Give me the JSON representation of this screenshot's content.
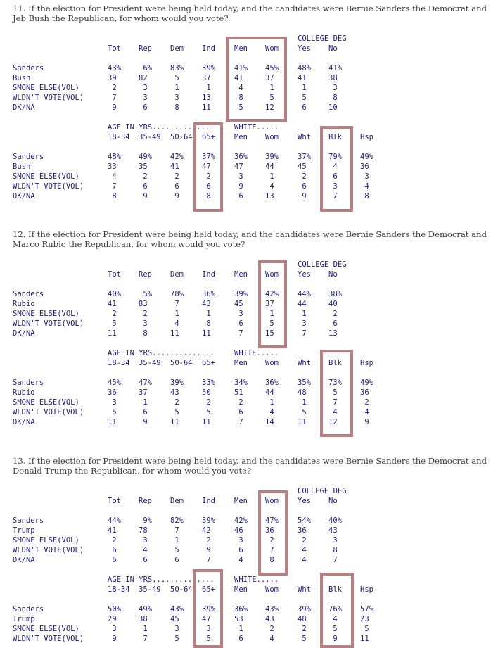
{
  "questions": [
    {
      "text": "11. If the election for President were being held today, and the candidates were Bernie Sanders the Democrat and Jeb Bush the Republican, for whom would you vote?",
      "group_header_1": "COLLEGE DEG",
      "columns_1": [
        "Tot",
        "Rep",
        "Dem",
        "Ind",
        "Men",
        "Wom",
        "Yes",
        "No"
      ],
      "rows_1": [
        {
          "label": "Sanders",
          "values": [
            "43%",
            "6%",
            "83%",
            "39%",
            "41%",
            "45%",
            "48%",
            "41%"
          ]
        },
        {
          "label": "Bush",
          "values": [
            "39",
            "82",
            "5",
            "37",
            "41",
            "37",
            "41",
            "38"
          ]
        },
        {
          "label": "SMONE ELSE(VOL)",
          "values": [
            "2",
            "3",
            "1",
            "1",
            "4",
            "1",
            "1",
            "3"
          ]
        },
        {
          "label": "WLDN'T VOTE(VOL)",
          "values": [
            "7",
            "3",
            "3",
            "13",
            "8",
            "5",
            "5",
            "8"
          ]
        },
        {
          "label": "DK/NA",
          "values": [
            "9",
            "6",
            "8",
            "11",
            "5",
            "12",
            "6",
            "10"
          ]
        }
      ],
      "group_header_age": "AGE IN YRS..............",
      "group_header_white": "WHITE.....",
      "columns_2": [
        "18-34",
        "35-49",
        "50-64",
        "65+",
        "Men",
        "Wom",
        "Wht",
        "Blk",
        "Hsp"
      ],
      "rows_2": [
        {
          "label": "Sanders",
          "values": [
            "48%",
            "49%",
            "42%",
            "37%",
            "36%",
            "39%",
            "37%",
            "79%",
            "49%"
          ]
        },
        {
          "label": "Bush",
          "values": [
            "33",
            "35",
            "41",
            "47",
            "47",
            "44",
            "45",
            "4",
            "36"
          ]
        },
        {
          "label": "SMONE ELSE(VOL)",
          "values": [
            "4",
            "2",
            "2",
            "2",
            "3",
            "1",
            "2",
            "6",
            "3"
          ]
        },
        {
          "label": "WLDN'T VOTE(VOL)",
          "values": [
            "7",
            "6",
            "6",
            "6",
            "9",
            "4",
            "6",
            "3",
            "4"
          ]
        },
        {
          "label": "DK/NA",
          "values": [
            "8",
            "9",
            "9",
            "8",
            "6",
            "13",
            "9",
            "7",
            "8"
          ]
        }
      ]
    },
    {
      "text": "12. If the election for President were being held today, and the candidates were Bernie Sanders the Democrat and Marco Rubio the Republican, for whom would you vote?",
      "group_header_1": "COLLEGE DEG",
      "columns_1": [
        "Tot",
        "Rep",
        "Dem",
        "Ind",
        "Men",
        "Wom",
        "Yes",
        "No"
      ],
      "rows_1": [
        {
          "label": "Sanders",
          "values": [
            "40%",
            "5%",
            "78%",
            "36%",
            "39%",
            "42%",
            "44%",
            "38%"
          ]
        },
        {
          "label": "Rubio",
          "values": [
            "41",
            "83",
            "7",
            "43",
            "45",
            "37",
            "44",
            "40"
          ]
        },
        {
          "label": "SMONE ELSE(VOL)",
          "values": [
            "2",
            "2",
            "1",
            "1",
            "3",
            "1",
            "1",
            "2"
          ]
        },
        {
          "label": "WLDN'T VOTE(VOL)",
          "values": [
            "5",
            "3",
            "4",
            "8",
            "6",
            "5",
            "3",
            "6"
          ]
        },
        {
          "label": "DK/NA",
          "values": [
            "11",
            "8",
            "11",
            "11",
            "7",
            "15",
            "7",
            "13"
          ]
        }
      ],
      "group_header_age": "AGE IN YRS..............",
      "group_header_white": "WHITE.....",
      "columns_2": [
        "18-34",
        "35-49",
        "50-64",
        "65+",
        "Men",
        "Wom",
        "Wht",
        "Blk",
        "Hsp"
      ],
      "rows_2": [
        {
          "label": "Sanders",
          "values": [
            "45%",
            "47%",
            "39%",
            "33%",
            "34%",
            "36%",
            "35%",
            "73%",
            "49%"
          ]
        },
        {
          "label": "Rubio",
          "values": [
            "36",
            "37",
            "43",
            "50",
            "51",
            "44",
            "48",
            "5",
            "36"
          ]
        },
        {
          "label": "SMONE ELSE(VOL)",
          "values": [
            "3",
            "1",
            "2",
            "2",
            "2",
            "1",
            "1",
            "7",
            "2"
          ]
        },
        {
          "label": "WLDN'T VOTE(VOL)",
          "values": [
            "5",
            "6",
            "5",
            "5",
            "6",
            "4",
            "5",
            "4",
            "4"
          ]
        },
        {
          "label": "DK/NA",
          "values": [
            "11",
            "9",
            "11",
            "11",
            "7",
            "14",
            "11",
            "12",
            "9"
          ]
        }
      ]
    },
    {
      "text": "13. If the election for President were being held today, and the candidates were Bernie Sanders the Democrat and Donald Trump the Republican, for whom would you vote?",
      "group_header_1": "COLLEGE DEG",
      "columns_1": [
        "Tot",
        "Rep",
        "Dem",
        "Ind",
        "Men",
        "Wom",
        "Yes",
        "No"
      ],
      "rows_1": [
        {
          "label": "Sanders",
          "values": [
            "44%",
            "9%",
            "82%",
            "39%",
            "42%",
            "47%",
            "54%",
            "40%"
          ]
        },
        {
          "label": "Trump",
          "values": [
            "41",
            "78",
            "7",
            "42",
            "46",
            "36",
            "36",
            "43"
          ]
        },
        {
          "label": "SMONE ELSE(VOL)",
          "values": [
            "2",
            "3",
            "1",
            "2",
            "3",
            "2",
            "2",
            "3"
          ]
        },
        {
          "label": "WLDN'T VOTE(VOL)",
          "values": [
            "6",
            "4",
            "5",
            "9",
            "6",
            "7",
            "4",
            "8"
          ]
        },
        {
          "label": "DK/NA",
          "values": [
            "6",
            "6",
            "6",
            "7",
            "4",
            "8",
            "4",
            "7"
          ]
        }
      ],
      "group_header_age": "AGE IN YRS..............",
      "group_header_white": "WHITE.....",
      "columns_2": [
        "18-34",
        "35-49",
        "50-64",
        "65+",
        "Men",
        "Wom",
        "Wht",
        "Blk",
        "Hsp"
      ],
      "rows_2": [
        {
          "label": "Sanders",
          "values": [
            "50%",
            "49%",
            "43%",
            "39%",
            "36%",
            "43%",
            "39%",
            "76%",
            "57%"
          ]
        },
        {
          "label": "Trump",
          "values": [
            "29",
            "38",
            "45",
            "47",
            "53",
            "43",
            "48",
            "4",
            "23"
          ]
        },
        {
          "label": "SMONE ELSE(VOL)",
          "values": [
            "3",
            "1",
            "3",
            "3",
            "1",
            "2",
            "2",
            "5",
            "5"
          ]
        },
        {
          "label": "WLDN'T VOTE(VOL)",
          "values": [
            "9",
            "7",
            "5",
            "5",
            "6",
            "4",
            "5",
            "9",
            "11"
          ]
        }
      ]
    }
  ],
  "highlight_color": "#b77f80"
}
